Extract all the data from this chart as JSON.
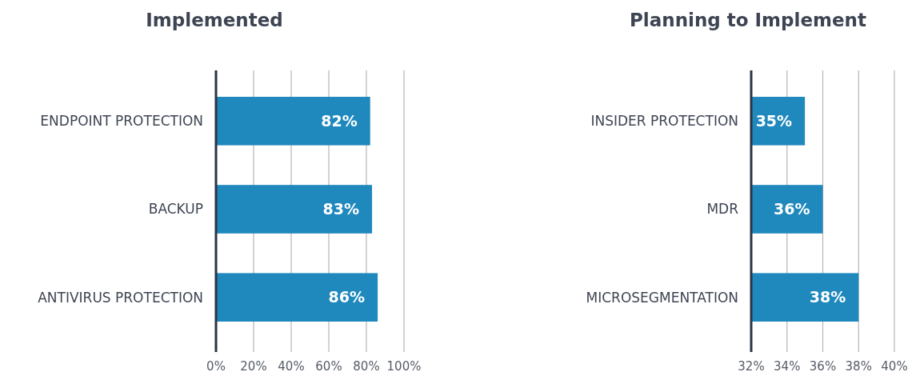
{
  "chart_data": [
    {
      "type": "bar",
      "orientation": "horizontal",
      "title": "Implemented",
      "categories": [
        "ENDPOINT PROTECTION",
        "BACKUP",
        "ANTIVIRUS PROTECTION"
      ],
      "values": [
        82,
        83,
        86
      ],
      "value_labels": [
        "82%",
        "83%",
        "86%"
      ],
      "color": "#1f88bd",
      "xlim": [
        0,
        100
      ],
      "xticks": [
        {
          "value": 0,
          "label": "0%"
        },
        {
          "value": 20,
          "label": "20%"
        },
        {
          "value": 40,
          "label": "40%"
        },
        {
          "value": 60,
          "label": "60%"
        },
        {
          "value": 80,
          "label": "80%"
        },
        {
          "value": 100,
          "label": "100%"
        }
      ],
      "grid": "x"
    },
    {
      "type": "bar",
      "orientation": "horizontal",
      "title": "Planning to Implement",
      "categories": [
        "INSIDER PROTECTION",
        "MDR",
        "MICROSEGMENTATION"
      ],
      "values": [
        35,
        36,
        38
      ],
      "value_labels": [
        "35%",
        "36%",
        "38%"
      ],
      "color": "#1f88bd",
      "xlim": [
        32,
        40
      ],
      "xticks": [
        {
          "value": 32,
          "label": "32%"
        },
        {
          "value": 34,
          "label": "34%"
        },
        {
          "value": 36,
          "label": "36%"
        },
        {
          "value": 38,
          "label": "38%"
        },
        {
          "value": 40,
          "label": "40%"
        }
      ],
      "grid": "x"
    }
  ]
}
